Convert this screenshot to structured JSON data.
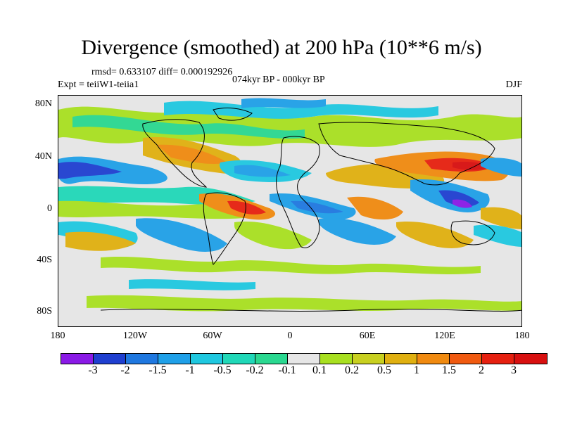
{
  "title": "Divergence (smoothed) at 200 hPa (10**6 m/s)",
  "stats_line": "rmsd= 0.633107 diff= 0.000192926",
  "experiment": "Expt = teiiW1-teiia1",
  "period": "074kyr BP - 000kyr BP",
  "season": "DJF",
  "y_axis_labels": [
    "80N",
    "40N",
    "0",
    "40S",
    "80S"
  ],
  "x_axis_labels": [
    "180",
    "120W",
    "60W",
    "0",
    "60E",
    "120E",
    "180"
  ],
  "colorbar": {
    "labels": [
      "-3",
      "-2",
      "-1.5",
      "-1",
      "-0.5",
      "-0.2",
      "-0.1",
      "0.1",
      "0.2",
      "0.5",
      "1",
      "1.5",
      "2",
      "3"
    ],
    "colors": [
      "#8a1ae6",
      "#1f3fd0",
      "#1f78e0",
      "#1fa0e8",
      "#1fc8e0",
      "#20d8b8",
      "#2ad890",
      "#e6e6e6",
      "#a8e020",
      "#c8d020",
      "#e0b010",
      "#f08a10",
      "#f05a10",
      "#e62010",
      "#d81010"
    ]
  }
}
